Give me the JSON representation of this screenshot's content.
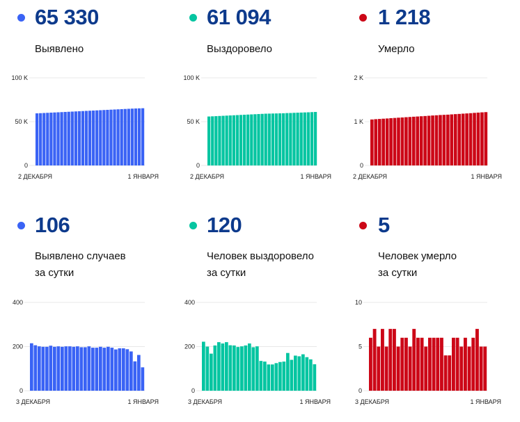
{
  "colors": {
    "cases": "#3a63f5",
    "recovered": "#05c5a1",
    "deaths": "#cc0717",
    "number": "#0d3a8c"
  },
  "panels": [
    {
      "id": "cases-total",
      "number": "65 330",
      "label_lines": [
        "Выявлено"
      ],
      "color_key": "cases"
    },
    {
      "id": "recovered-total",
      "number": "61 094",
      "label_lines": [
        "Выздоровело"
      ],
      "color_key": "recovered"
    },
    {
      "id": "deaths-total",
      "number": "1 218",
      "label_lines": [
        "Умерло"
      ],
      "color_key": "deaths"
    },
    {
      "id": "cases-daily",
      "number": "106",
      "label_lines": [
        "Выявлено случаев",
        "за сутки"
      ],
      "color_key": "cases"
    },
    {
      "id": "recovered-daily",
      "number": "120",
      "label_lines": [
        "Человек выздоровело",
        "за сутки"
      ],
      "color_key": "recovered"
    },
    {
      "id": "deaths-daily",
      "number": "5",
      "label_lines": [
        "Человек умерло",
        "за сутки"
      ],
      "color_key": "deaths"
    }
  ],
  "chart_data": [
    {
      "type": "bar",
      "title": "Выявлено",
      "color_key": "cases",
      "ylim": [
        0,
        100000
      ],
      "yticks": [
        0,
        50000,
        100000
      ],
      "ytick_labels": [
        "0",
        "50 K",
        "100 K"
      ],
      "x_start_label": "2 ДЕКАБРЯ",
      "x_end_label": "1 ЯНВАРЯ",
      "values": [
        59500,
        59700,
        59900,
        60100,
        60300,
        60500,
        60700,
        60900,
        61100,
        61300,
        61500,
        61700,
        61900,
        62100,
        62300,
        62500,
        62700,
        62900,
        63100,
        63300,
        63500,
        63700,
        63900,
        64100,
        64300,
        64500,
        64700,
        64900,
        65050,
        65200,
        65330
      ]
    },
    {
      "type": "bar",
      "title": "Выздоровело",
      "color_key": "recovered",
      "ylim": [
        0,
        100000
      ],
      "yticks": [
        0,
        50000,
        100000
      ],
      "ytick_labels": [
        "0",
        "50 K",
        "100 K"
      ],
      "x_start_label": "2 ДЕКАБРЯ",
      "x_end_label": "1 ЯНВАРЯ",
      "values": [
        55900,
        56100,
        56300,
        56500,
        56700,
        56900,
        57100,
        57300,
        57500,
        57700,
        57900,
        58100,
        58300,
        58500,
        58700,
        58900,
        59100,
        59200,
        59300,
        59400,
        59500,
        59600,
        59800,
        59900,
        60100,
        60250,
        60400,
        60550,
        60700,
        60900,
        61094
      ]
    },
    {
      "type": "bar",
      "title": "Умерло",
      "color_key": "deaths",
      "ylim": [
        0,
        2000
      ],
      "yticks": [
        0,
        1000,
        2000
      ],
      "ytick_labels": [
        "0",
        "1 K",
        "2 K"
      ],
      "x_start_label": "2 ДЕКАБРЯ",
      "x_end_label": "1 ЯНВАРЯ",
      "values": [
        1050,
        1057,
        1062,
        1068,
        1073,
        1080,
        1085,
        1091,
        1096,
        1102,
        1107,
        1113,
        1118,
        1124,
        1129,
        1135,
        1141,
        1146,
        1152,
        1156,
        1160,
        1166,
        1172,
        1177,
        1183,
        1188,
        1194,
        1201,
        1207,
        1213,
        1218
      ]
    },
    {
      "type": "bar",
      "title": "Выявлено случаев за сутки",
      "color_key": "cases",
      "ylim": [
        0,
        400
      ],
      "yticks": [
        0,
        200,
        400
      ],
      "ytick_labels": [
        "0",
        "200",
        "400"
      ],
      "x_start_label": "3 ДЕКАБРЯ",
      "x_end_label": "1 ЯНВАРЯ",
      "values": [
        215,
        206,
        201,
        199,
        199,
        204,
        199,
        201,
        199,
        201,
        201,
        199,
        201,
        197,
        197,
        201,
        195,
        195,
        199,
        195,
        199,
        195,
        187,
        192,
        192,
        188,
        178,
        133,
        162,
        106
      ]
    },
    {
      "type": "bar",
      "title": "Человек выздоровело за сутки",
      "color_key": "recovered",
      "ylim": [
        0,
        400
      ],
      "yticks": [
        0,
        200,
        400
      ],
      "ytick_labels": [
        "0",
        "200",
        "400"
      ],
      "x_start_label": "3 ДЕКАБРЯ",
      "x_end_label": "1 ЯНВАРЯ",
      "values": [
        222,
        200,
        168,
        205,
        220,
        214,
        220,
        206,
        205,
        198,
        201,
        205,
        214,
        197,
        201,
        135,
        132,
        119,
        119,
        125,
        130,
        132,
        171,
        140,
        159,
        156,
        165,
        152,
        142,
        120
      ]
    },
    {
      "type": "bar",
      "title": "Человек умерло за сутки",
      "color_key": "deaths",
      "ylim": [
        0,
        10
      ],
      "yticks": [
        0,
        5,
        10
      ],
      "ytick_labels": [
        "0",
        "5",
        "10"
      ],
      "x_start_label": "3 ДЕКАБРЯ",
      "x_end_label": "1 ЯНВАРЯ",
      "values": [
        6,
        7,
        5,
        7,
        5,
        7,
        7,
        5,
        6,
        6,
        5,
        7,
        6,
        6,
        5,
        6,
        6,
        6,
        6,
        4,
        4,
        6,
        6,
        5,
        6,
        5,
        6,
        7,
        5,
        5
      ]
    }
  ]
}
